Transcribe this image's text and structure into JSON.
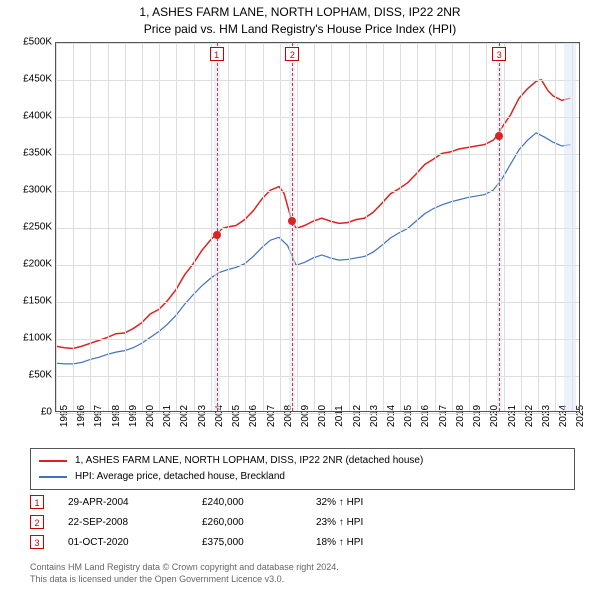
{
  "title": {
    "line1": "1, ASHES FARM LANE, NORTH LOPHAM, DISS, IP22 2NR",
    "line2": "Price paid vs. HM Land Registry's House Price Index (HPI)"
  },
  "chart": {
    "type": "line",
    "background_color": "#ffffff",
    "grid_color": "#dddddd",
    "border_color": "#555555",
    "x": {
      "min": 1995,
      "max": 2025.5,
      "ticks": [
        1995,
        1996,
        1997,
        1998,
        1999,
        2000,
        2001,
        2002,
        2003,
        2004,
        2005,
        2006,
        2007,
        2008,
        2009,
        2010,
        2011,
        2012,
        2013,
        2014,
        2015,
        2016,
        2017,
        2018,
        2019,
        2020,
        2021,
        2022,
        2023,
        2024,
        2025
      ]
    },
    "y": {
      "min": 0,
      "max": 500000,
      "ticks": [
        0,
        50000,
        100000,
        150000,
        200000,
        250000,
        300000,
        350000,
        400000,
        450000,
        500000
      ],
      "tick_labels": [
        "£0",
        "£50K",
        "£100K",
        "£150K",
        "£200K",
        "£250K",
        "£300K",
        "£350K",
        "£400K",
        "£450K",
        "£500K"
      ]
    },
    "series": [
      {
        "id": "property",
        "label": "1, ASHES FARM LANE, NORTH LOPHAM, DISS, IP22 2NR (detached house)",
        "color": "#dd2222",
        "line_width": 1.5,
        "points": [
          [
            1995.0,
            88000
          ],
          [
            1995.5,
            86000
          ],
          [
            1996.0,
            85000
          ],
          [
            1996.5,
            88000
          ],
          [
            1997.0,
            92000
          ],
          [
            1997.5,
            96000
          ],
          [
            1998.0,
            100000
          ],
          [
            1998.5,
            105000
          ],
          [
            1999.0,
            106000
          ],
          [
            1999.5,
            112000
          ],
          [
            2000.0,
            120000
          ],
          [
            2000.5,
            132000
          ],
          [
            2001.0,
            138000
          ],
          [
            2001.5,
            150000
          ],
          [
            2002.0,
            165000
          ],
          [
            2002.5,
            185000
          ],
          [
            2003.0,
            200000
          ],
          [
            2003.5,
            218000
          ],
          [
            2004.0,
            232000
          ],
          [
            2004.33,
            240000
          ],
          [
            2004.7,
            248000
          ],
          [
            2005.0,
            250000
          ],
          [
            2005.5,
            252000
          ],
          [
            2006.0,
            260000
          ],
          [
            2006.5,
            272000
          ],
          [
            2007.0,
            288000
          ],
          [
            2007.5,
            300000
          ],
          [
            2008.0,
            305000
          ],
          [
            2008.3,
            296000
          ],
          [
            2008.73,
            260000
          ],
          [
            2009.0,
            248000
          ],
          [
            2009.5,
            252000
          ],
          [
            2010.0,
            258000
          ],
          [
            2010.5,
            262000
          ],
          [
            2011.0,
            258000
          ],
          [
            2011.5,
            255000
          ],
          [
            2012.0,
            256000
          ],
          [
            2012.5,
            260000
          ],
          [
            2013.0,
            262000
          ],
          [
            2013.5,
            270000
          ],
          [
            2014.0,
            282000
          ],
          [
            2014.5,
            295000
          ],
          [
            2015.0,
            302000
          ],
          [
            2015.5,
            310000
          ],
          [
            2016.0,
            322000
          ],
          [
            2016.5,
            335000
          ],
          [
            2017.0,
            342000
          ],
          [
            2017.5,
            350000
          ],
          [
            2018.0,
            352000
          ],
          [
            2018.5,
            356000
          ],
          [
            2019.0,
            358000
          ],
          [
            2019.5,
            360000
          ],
          [
            2020.0,
            362000
          ],
          [
            2020.5,
            368000
          ],
          [
            2020.75,
            375000
          ],
          [
            2021.0,
            385000
          ],
          [
            2021.5,
            402000
          ],
          [
            2022.0,
            425000
          ],
          [
            2022.5,
            438000
          ],
          [
            2023.0,
            448000
          ],
          [
            2023.3,
            450000
          ],
          [
            2023.7,
            435000
          ],
          [
            2024.0,
            428000
          ],
          [
            2024.5,
            422000
          ],
          [
            2025.0,
            425000
          ]
        ]
      },
      {
        "id": "hpi",
        "label": "HPI: Average price, detached house, Breckland",
        "color": "#4070c0",
        "line_width": 1.2,
        "points": [
          [
            1995.0,
            65000
          ],
          [
            1995.5,
            64000
          ],
          [
            1996.0,
            64000
          ],
          [
            1996.5,
            66000
          ],
          [
            1997.0,
            70000
          ],
          [
            1997.5,
            73000
          ],
          [
            1998.0,
            77000
          ],
          [
            1998.5,
            80000
          ],
          [
            1999.0,
            82000
          ],
          [
            1999.5,
            86000
          ],
          [
            2000.0,
            92000
          ],
          [
            2000.5,
            100000
          ],
          [
            2001.0,
            108000
          ],
          [
            2001.5,
            118000
          ],
          [
            2002.0,
            130000
          ],
          [
            2002.5,
            145000
          ],
          [
            2003.0,
            158000
          ],
          [
            2003.5,
            170000
          ],
          [
            2004.0,
            180000
          ],
          [
            2004.5,
            188000
          ],
          [
            2005.0,
            192000
          ],
          [
            2005.5,
            195000
          ],
          [
            2006.0,
            200000
          ],
          [
            2006.5,
            210000
          ],
          [
            2007.0,
            222000
          ],
          [
            2007.5,
            232000
          ],
          [
            2008.0,
            236000
          ],
          [
            2008.5,
            225000
          ],
          [
            2009.0,
            198000
          ],
          [
            2009.5,
            202000
          ],
          [
            2010.0,
            208000
          ],
          [
            2010.5,
            212000
          ],
          [
            2011.0,
            208000
          ],
          [
            2011.5,
            205000
          ],
          [
            2012.0,
            206000
          ],
          [
            2012.5,
            208000
          ],
          [
            2013.0,
            210000
          ],
          [
            2013.5,
            216000
          ],
          [
            2014.0,
            225000
          ],
          [
            2014.5,
            235000
          ],
          [
            2015.0,
            242000
          ],
          [
            2015.5,
            248000
          ],
          [
            2016.0,
            258000
          ],
          [
            2016.5,
            268000
          ],
          [
            2017.0,
            275000
          ],
          [
            2017.5,
            280000
          ],
          [
            2018.0,
            284000
          ],
          [
            2018.5,
            287000
          ],
          [
            2019.0,
            290000
          ],
          [
            2019.5,
            292000
          ],
          [
            2020.0,
            294000
          ],
          [
            2020.5,
            300000
          ],
          [
            2021.0,
            315000
          ],
          [
            2021.5,
            335000
          ],
          [
            2022.0,
            355000
          ],
          [
            2022.5,
            368000
          ],
          [
            2023.0,
            378000
          ],
          [
            2023.5,
            372000
          ],
          [
            2024.0,
            365000
          ],
          [
            2024.5,
            360000
          ],
          [
            2025.0,
            362000
          ]
        ]
      }
    ],
    "event_bands": [
      {
        "x_start": 2004.2,
        "x_end": 2004.5,
        "color": "rgba(220,230,245,0.55)"
      },
      {
        "x_start": 2008.55,
        "x_end": 2008.9,
        "color": "rgba(220,230,245,0.55)"
      },
      {
        "x_start": 2020.6,
        "x_end": 2020.9,
        "color": "rgba(220,230,245,0.55)"
      },
      {
        "x_start": 2024.5,
        "x_end": 2025.2,
        "color": "rgba(220,230,245,0.55)"
      }
    ],
    "event_lines": [
      {
        "id": 1,
        "x": 2004.33,
        "color": "#dd3333"
      },
      {
        "id": 2,
        "x": 2008.73,
        "color": "#dd3333"
      },
      {
        "id": 3,
        "x": 2020.75,
        "color": "#dd3333"
      }
    ],
    "event_points": [
      {
        "x": 2004.33,
        "y": 240000,
        "color": "#dd2222"
      },
      {
        "x": 2008.73,
        "y": 260000,
        "color": "#dd2222"
      },
      {
        "x": 2020.75,
        "y": 375000,
        "color": "#dd2222"
      }
    ]
  },
  "legend": {
    "items": [
      {
        "color": "#dd2222",
        "label": "1, ASHES FARM LANE, NORTH LOPHAM, DISS, IP22 2NR (detached house)"
      },
      {
        "color": "#4070c0",
        "label": "HPI: Average price, detached house, Breckland"
      }
    ]
  },
  "events_table": {
    "rows": [
      {
        "num": "1",
        "date": "29-APR-2004",
        "price": "£240,000",
        "pct": "32% ↑ HPI"
      },
      {
        "num": "2",
        "date": "22-SEP-2008",
        "price": "£260,000",
        "pct": "23% ↑ HPI"
      },
      {
        "num": "3",
        "date": "01-OCT-2020",
        "price": "£375,000",
        "pct": "18% ↑ HPI"
      }
    ]
  },
  "footer": {
    "line1": "Contains HM Land Registry data © Crown copyright and database right 2024.",
    "line2": "This data is licensed under the Open Government Licence v3.0."
  }
}
